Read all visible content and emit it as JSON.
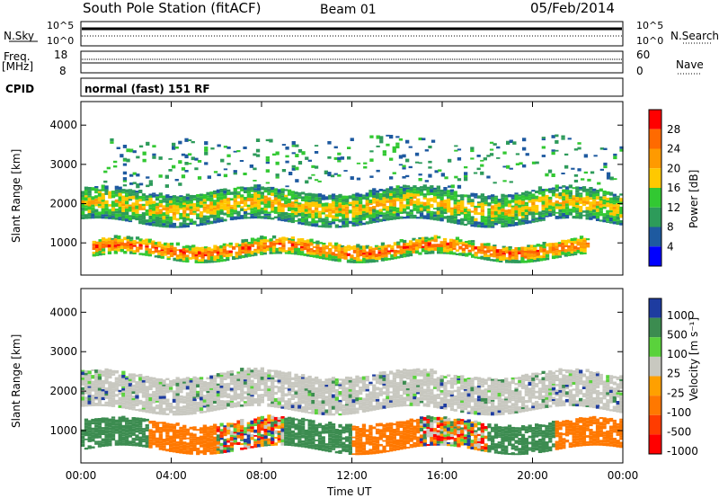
{
  "header": {
    "station_title": "South Pole Station (fitACF)",
    "beam": "Beam 01",
    "date": "05/Feb/2014"
  },
  "summary_panel": {
    "nsky_label": "N.Sky",
    "nsearch_label": "N.Search",
    "noise_ticks": [
      "10^5",
      "10^0"
    ],
    "freq_label_1": "Freq.",
    "freq_label_2": "[MHz]",
    "freq_ticks": [
      "18",
      "8"
    ],
    "nave_label": "Nave",
    "nave_ticks": [
      "60",
      "0"
    ],
    "cpid_label": "CPID",
    "cpid_value": "normal (fast) 151 RF"
  },
  "chart_data": [
    {
      "type": "heatmap",
      "title": "",
      "xlabel": "Time UT",
      "ylabel": "Slant Range [km]",
      "x_ticks": [
        "00:00",
        "04:00",
        "08:00",
        "12:00",
        "16:00",
        "20:00",
        "00:00"
      ],
      "y_ticks": [
        1000,
        2000,
        3000,
        4000
      ],
      "ylim": [
        180,
        4600
      ],
      "colorbar_label": "Power [dB]",
      "colorbar_ticks": [
        "28",
        "24",
        "20",
        "16",
        "12",
        "8",
        "4"
      ],
      "colors": [
        "#ff0000",
        "#ff6a00",
        "#ff9a00",
        "#ffc800",
        "#32c832",
        "#2d9b5a",
        "#1e5aa0",
        "#0000ff"
      ],
      "bands": [
        {
          "range_km": [
            600,
            1000
          ],
          "time_h": [
            0.5,
            22.5
          ],
          "level": "high"
        },
        {
          "range_km": [
            1500,
            2300
          ],
          "time_h": [
            0,
            24
          ],
          "level": "medium"
        },
        {
          "range_km": [
            2500,
            3600
          ],
          "time_h": [
            1,
            24
          ],
          "level": "low"
        }
      ]
    },
    {
      "type": "heatmap",
      "title": "",
      "xlabel": "Time UT",
      "ylabel": "Slant Range [km]",
      "x_ticks": [
        "00:00",
        "04:00",
        "08:00",
        "12:00",
        "16:00",
        "20:00",
        "00:00"
      ],
      "y_ticks": [
        1000,
        2000,
        3000,
        4000
      ],
      "ylim": [
        180,
        4600
      ],
      "colorbar_label": "Velocity [m s⁻¹]",
      "colorbar_ticks": [
        "1000",
        "500",
        "100",
        "25",
        "-25",
        "-100",
        "-500",
        "-1000"
      ],
      "colors": [
        "#1e3ca0",
        "#3c8c50",
        "#5ad23c",
        "#c8c8c0",
        "#ffa000",
        "#ff7800",
        "#ff3c00",
        "#ff0000"
      ],
      "bands": [
        {
          "range_km": [
            500,
            1200
          ],
          "time_h": [
            0,
            24
          ],
          "level": "mixed"
        },
        {
          "range_km": [
            1500,
            2400
          ],
          "time_h": [
            0,
            24
          ],
          "level": "ground-scatter"
        }
      ]
    }
  ]
}
